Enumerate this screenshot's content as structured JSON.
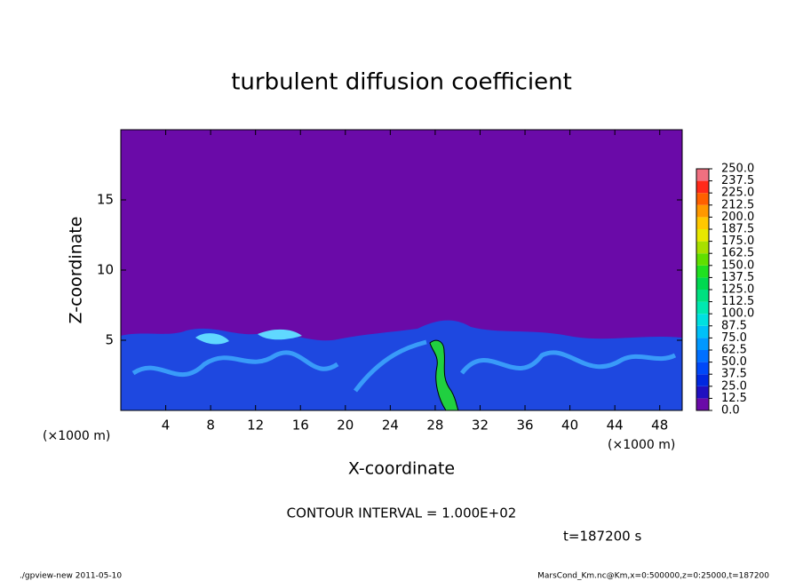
{
  "chart_data": {
    "type": "contour",
    "title": "turbulent diffusion coefficient",
    "xlabel": "X-coordinate",
    "ylabel": "Z-coordinate",
    "x_unit_left": "(×1000 m)",
    "x_unit_right": "(×1000 m)",
    "xlim": [
      0,
      50
    ],
    "xticks": [
      4,
      8,
      12,
      16,
      20,
      24,
      28,
      32,
      36,
      40,
      44,
      48
    ],
    "ylim": [
      0,
      20
    ],
    "yticks": [
      5,
      10,
      15
    ],
    "colorbar": {
      "levels": [
        {
          "value": 0,
          "label": "0.0"
        },
        {
          "value": 12.5,
          "label": "12.5"
        },
        {
          "value": 25,
          "label": "25.0"
        },
        {
          "value": 37.5,
          "label": "37.5"
        },
        {
          "value": 50,
          "label": "50.0"
        },
        {
          "value": 62.5,
          "label": "62.5"
        },
        {
          "value": 75,
          "label": "75.0"
        },
        {
          "value": 87.5,
          "label": "87.5"
        },
        {
          "value": 100,
          "label": "100.0"
        },
        {
          "value": 112.5,
          "label": "112.5"
        },
        {
          "value": 125,
          "label": "125.0"
        },
        {
          "value": 137.5,
          "label": "137.5"
        },
        {
          "value": 150,
          "label": "150.0"
        },
        {
          "value": 162.5,
          "label": "162.5"
        },
        {
          "value": 175,
          "label": "175.0"
        },
        {
          "value": 187.5,
          "label": "187.5"
        },
        {
          "value": 200,
          "label": "200.0"
        },
        {
          "value": 212.5,
          "label": "212.5"
        },
        {
          "value": 225,
          "label": "225.0"
        },
        {
          "value": 237.5,
          "label": "237.5"
        },
        {
          "value": 250,
          "label": "250.0"
        }
      ],
      "colors": [
        "#6a0aa8",
        "#2010c0",
        "#0028e0",
        "#0048f8",
        "#0070ff",
        "#0098ff",
        "#00c0f8",
        "#00e0e0",
        "#00e8b0",
        "#00e080",
        "#00d850",
        "#20e020",
        "#60e000",
        "#a8e000",
        "#e8e800",
        "#ffc800",
        "#ff9800",
        "#ff6000",
        "#ff2a1a",
        "#f07080"
      ]
    },
    "contour_interval": "CONTOUR INTERVAL = 1.000E+02",
    "time": "t=187200 s",
    "footer_left": "./gpview-new   2011-05-10",
    "footer_right": "MarsCond_Km.nc@Km,x=0:500000,z=0:25000,t=187200"
  }
}
